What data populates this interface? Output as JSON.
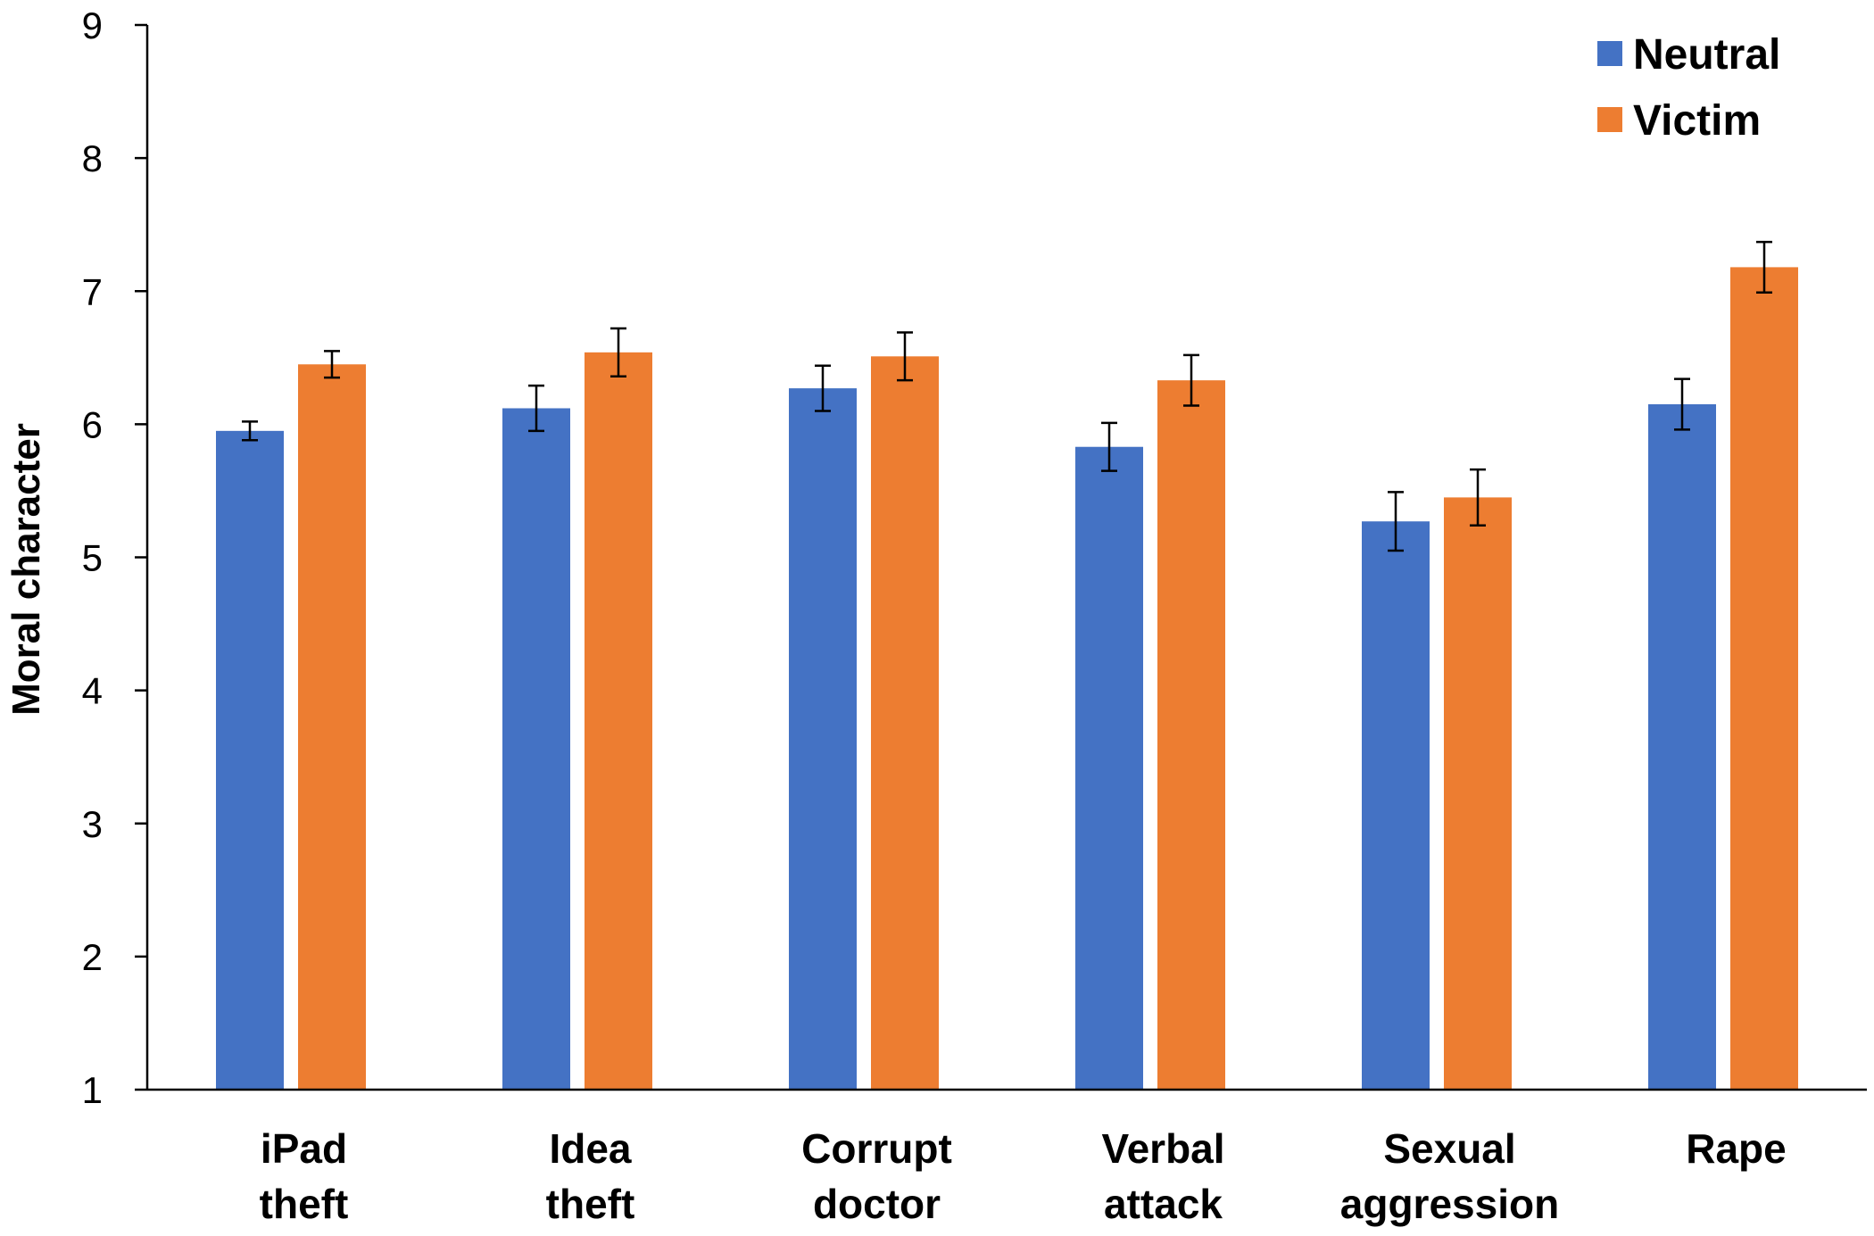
{
  "chart_data": {
    "type": "bar",
    "title": "",
    "xlabel": "",
    "ylabel": "Moral character",
    "ylim": [
      1,
      9
    ],
    "yticks": [
      1,
      2,
      3,
      4,
      5,
      6,
      7,
      8,
      9
    ],
    "categories": [
      [
        "iPad",
        "theft"
      ],
      [
        "Idea",
        "theft"
      ],
      [
        "Corrupt",
        "doctor"
      ],
      [
        "Verbal",
        "attack"
      ],
      [
        "Sexual",
        "aggression"
      ],
      [
        "Rape"
      ]
    ],
    "series": [
      {
        "name": "Neutral",
        "color": "#4472C4",
        "values": [
          5.95,
          6.12,
          6.27,
          5.83,
          5.27,
          6.15
        ],
        "error": [
          0.07,
          0.17,
          0.17,
          0.18,
          0.22,
          0.19
        ]
      },
      {
        "name": "Victim",
        "color": "#ED7D31",
        "values": [
          6.45,
          6.54,
          6.51,
          6.33,
          5.45,
          7.18
        ],
        "error": [
          0.1,
          0.18,
          0.18,
          0.19,
          0.21,
          0.19
        ]
      }
    ],
    "grid": false,
    "legend_position": "top-right"
  }
}
